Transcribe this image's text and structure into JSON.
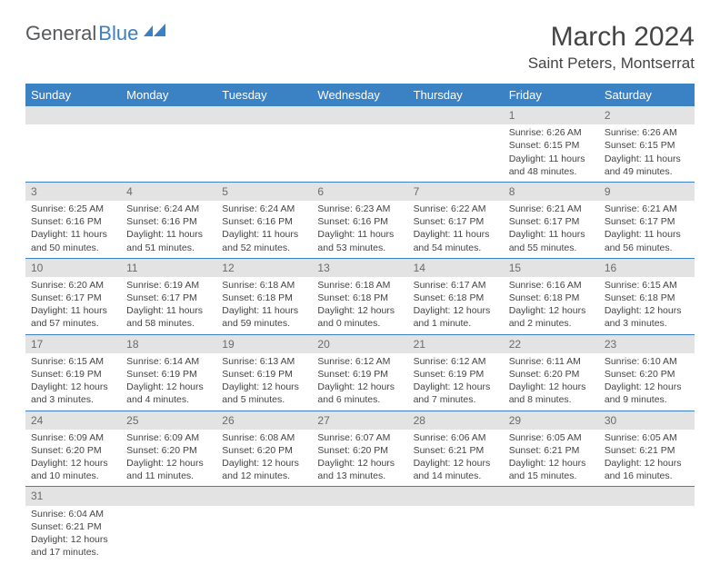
{
  "logo": {
    "part1": "General",
    "part2": "Blue"
  },
  "title": "March 2024",
  "location": "Saint Peters, Montserrat",
  "colors": {
    "header_bg": "#3b82c4",
    "header_text": "#ffffff",
    "daynum_bg": "#e3e3e3",
    "daynum_text": "#6b6b6b",
    "row_border": "#3b82c4",
    "logo_gray": "#555a5e",
    "logo_blue": "#3b7fc4"
  },
  "weekdays": [
    "Sunday",
    "Monday",
    "Tuesday",
    "Wednesday",
    "Thursday",
    "Friday",
    "Saturday"
  ],
  "weeks": [
    [
      null,
      null,
      null,
      null,
      null,
      {
        "d": "1",
        "sr": "6:26 AM",
        "ss": "6:15 PM",
        "dl": "11 hours and 48 minutes."
      },
      {
        "d": "2",
        "sr": "6:26 AM",
        "ss": "6:15 PM",
        "dl": "11 hours and 49 minutes."
      }
    ],
    [
      {
        "d": "3",
        "sr": "6:25 AM",
        "ss": "6:16 PM",
        "dl": "11 hours and 50 minutes."
      },
      {
        "d": "4",
        "sr": "6:24 AM",
        "ss": "6:16 PM",
        "dl": "11 hours and 51 minutes."
      },
      {
        "d": "5",
        "sr": "6:24 AM",
        "ss": "6:16 PM",
        "dl": "11 hours and 52 minutes."
      },
      {
        "d": "6",
        "sr": "6:23 AM",
        "ss": "6:16 PM",
        "dl": "11 hours and 53 minutes."
      },
      {
        "d": "7",
        "sr": "6:22 AM",
        "ss": "6:17 PM",
        "dl": "11 hours and 54 minutes."
      },
      {
        "d": "8",
        "sr": "6:21 AM",
        "ss": "6:17 PM",
        "dl": "11 hours and 55 minutes."
      },
      {
        "d": "9",
        "sr": "6:21 AM",
        "ss": "6:17 PM",
        "dl": "11 hours and 56 minutes."
      }
    ],
    [
      {
        "d": "10",
        "sr": "6:20 AM",
        "ss": "6:17 PM",
        "dl": "11 hours and 57 minutes."
      },
      {
        "d": "11",
        "sr": "6:19 AM",
        "ss": "6:17 PM",
        "dl": "11 hours and 58 minutes."
      },
      {
        "d": "12",
        "sr": "6:18 AM",
        "ss": "6:18 PM",
        "dl": "11 hours and 59 minutes."
      },
      {
        "d": "13",
        "sr": "6:18 AM",
        "ss": "6:18 PM",
        "dl": "12 hours and 0 minutes."
      },
      {
        "d": "14",
        "sr": "6:17 AM",
        "ss": "6:18 PM",
        "dl": "12 hours and 1 minute."
      },
      {
        "d": "15",
        "sr": "6:16 AM",
        "ss": "6:18 PM",
        "dl": "12 hours and 2 minutes."
      },
      {
        "d": "16",
        "sr": "6:15 AM",
        "ss": "6:18 PM",
        "dl": "12 hours and 3 minutes."
      }
    ],
    [
      {
        "d": "17",
        "sr": "6:15 AM",
        "ss": "6:19 PM",
        "dl": "12 hours and 3 minutes."
      },
      {
        "d": "18",
        "sr": "6:14 AM",
        "ss": "6:19 PM",
        "dl": "12 hours and 4 minutes."
      },
      {
        "d": "19",
        "sr": "6:13 AM",
        "ss": "6:19 PM",
        "dl": "12 hours and 5 minutes."
      },
      {
        "d": "20",
        "sr": "6:12 AM",
        "ss": "6:19 PM",
        "dl": "12 hours and 6 minutes."
      },
      {
        "d": "21",
        "sr": "6:12 AM",
        "ss": "6:19 PM",
        "dl": "12 hours and 7 minutes."
      },
      {
        "d": "22",
        "sr": "6:11 AM",
        "ss": "6:20 PM",
        "dl": "12 hours and 8 minutes."
      },
      {
        "d": "23",
        "sr": "6:10 AM",
        "ss": "6:20 PM",
        "dl": "12 hours and 9 minutes."
      }
    ],
    [
      {
        "d": "24",
        "sr": "6:09 AM",
        "ss": "6:20 PM",
        "dl": "12 hours and 10 minutes."
      },
      {
        "d": "25",
        "sr": "6:09 AM",
        "ss": "6:20 PM",
        "dl": "12 hours and 11 minutes."
      },
      {
        "d": "26",
        "sr": "6:08 AM",
        "ss": "6:20 PM",
        "dl": "12 hours and 12 minutes."
      },
      {
        "d": "27",
        "sr": "6:07 AM",
        "ss": "6:20 PM",
        "dl": "12 hours and 13 minutes."
      },
      {
        "d": "28",
        "sr": "6:06 AM",
        "ss": "6:21 PM",
        "dl": "12 hours and 14 minutes."
      },
      {
        "d": "29",
        "sr": "6:05 AM",
        "ss": "6:21 PM",
        "dl": "12 hours and 15 minutes."
      },
      {
        "d": "30",
        "sr": "6:05 AM",
        "ss": "6:21 PM",
        "dl": "12 hours and 16 minutes."
      }
    ],
    [
      {
        "d": "31",
        "sr": "6:04 AM",
        "ss": "6:21 PM",
        "dl": "12 hours and 17 minutes."
      },
      null,
      null,
      null,
      null,
      null,
      null
    ]
  ],
  "labels": {
    "sunrise": "Sunrise:",
    "sunset": "Sunset:",
    "daylight": "Daylight:"
  }
}
